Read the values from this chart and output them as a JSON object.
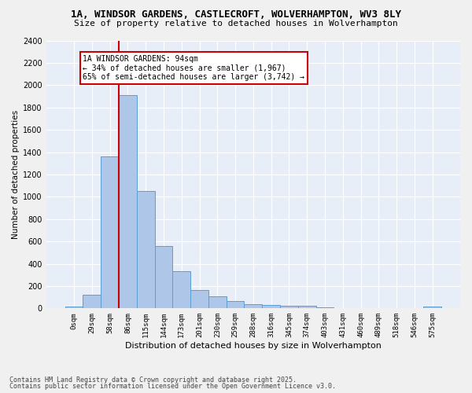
{
  "title1": "1A, WINDSOR GARDENS, CASTLECROFT, WOLVERHAMPTON, WV3 8LY",
  "title2": "Size of property relative to detached houses in Wolverhampton",
  "xlabel": "Distribution of detached houses by size in Wolverhampton",
  "ylabel": "Number of detached properties",
  "footer1": "Contains HM Land Registry data © Crown copyright and database right 2025.",
  "footer2": "Contains public sector information licensed under the Open Government Licence v3.0.",
  "bar_labels": [
    "0sqm",
    "29sqm",
    "58sqm",
    "86sqm",
    "115sqm",
    "144sqm",
    "173sqm",
    "201sqm",
    "230sqm",
    "259sqm",
    "288sqm",
    "316sqm",
    "345sqm",
    "374sqm",
    "403sqm",
    "431sqm",
    "460sqm",
    "489sqm",
    "518sqm",
    "546sqm",
    "575sqm"
  ],
  "bar_values": [
    15,
    125,
    1360,
    1910,
    1050,
    560,
    335,
    165,
    110,
    65,
    35,
    30,
    25,
    20,
    10,
    5,
    5,
    5,
    5,
    2,
    15
  ],
  "bar_color": "#aec6e8",
  "bar_edge_color": "#5a9fd4",
  "background_color": "#e8eef8",
  "fig_background": "#f0f0f0",
  "grid_color": "#ffffff",
  "ylim": [
    0,
    2400
  ],
  "yticks": [
    0,
    200,
    400,
    600,
    800,
    1000,
    1200,
    1400,
    1600,
    1800,
    2000,
    2200,
    2400
  ],
  "vline_color": "#cc0000",
  "vline_x_index": 3,
  "annotation_title": "1A WINDSOR GARDENS: 94sqm",
  "annotation_line1": "← 34% of detached houses are smaller (1,967)",
  "annotation_line2": "65% of semi-detached houses are larger (3,742) →",
  "annotation_box_color": "#cc0000"
}
